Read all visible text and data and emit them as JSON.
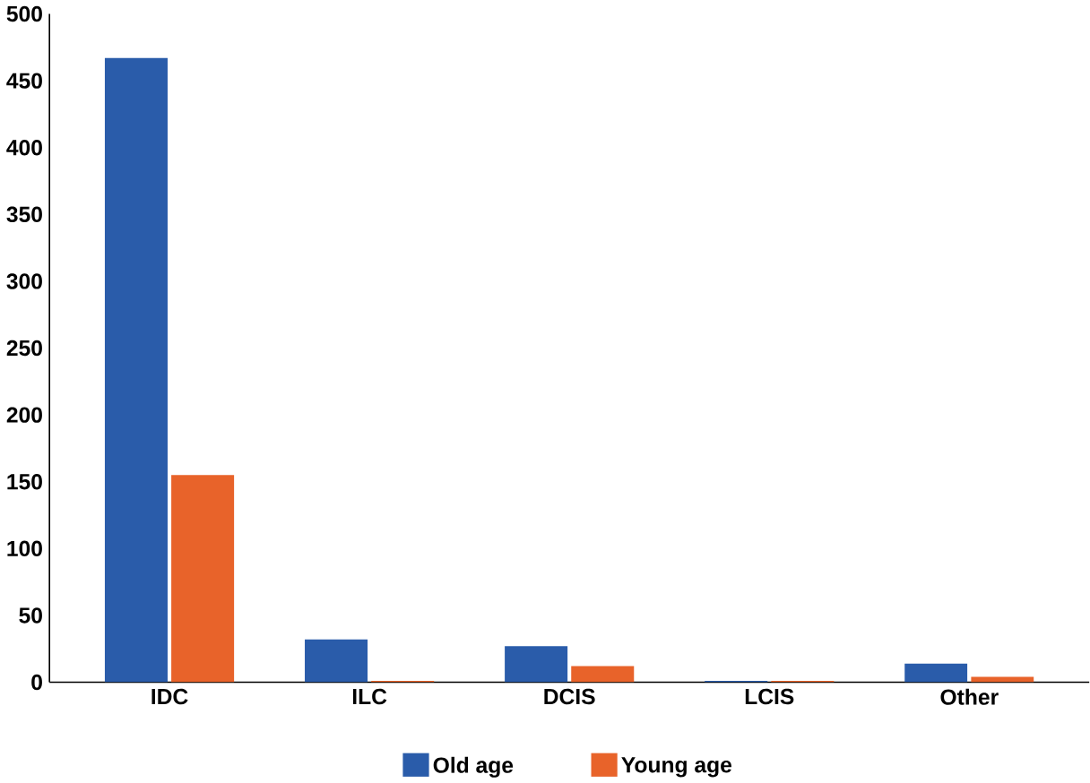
{
  "chart_data": {
    "type": "bar",
    "categories": [
      "IDC",
      "ILC",
      "DCIS",
      "LCIS",
      "Other"
    ],
    "series": [
      {
        "name": "Old age",
        "color": "#2a5caa",
        "values": [
          467,
          32,
          27,
          1,
          14
        ]
      },
      {
        "name": "Young age",
        "color": "#e8632a",
        "values": [
          155,
          1,
          12,
          1,
          4
        ]
      }
    ],
    "ylim": [
      0,
      500
    ],
    "yticks": [
      0,
      50,
      100,
      150,
      200,
      250,
      300,
      350,
      400,
      450,
      500
    ],
    "grid": false,
    "legend": "bottom"
  }
}
